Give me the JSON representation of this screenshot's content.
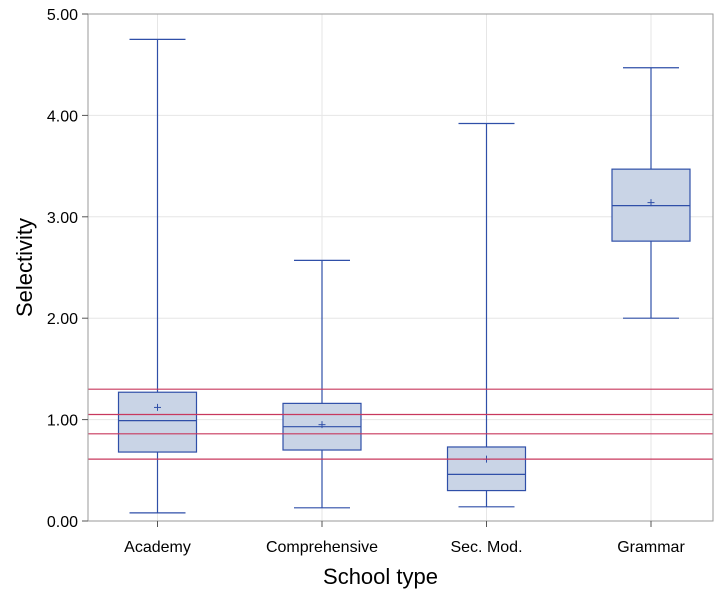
{
  "chart_data": {
    "type": "box",
    "xlabel": "School type",
    "ylabel": "Selectivity",
    "ylim": [
      0,
      5
    ],
    "yticks": [
      0,
      1,
      2,
      3,
      4,
      5
    ],
    "ytick_labels": [
      "0.00",
      "1.00",
      "2.00",
      "3.00",
      "4.00",
      "5.00"
    ],
    "categories": [
      "Academy",
      "Comprehensive",
      "Sec. Mod.",
      "Grammar"
    ],
    "boxes": [
      {
        "category": "Academy",
        "min": 0.08,
        "q1": 0.68,
        "median": 0.99,
        "q3": 1.27,
        "max": 4.75,
        "mean": 1.12
      },
      {
        "category": "Comprehensive",
        "min": 0.13,
        "q1": 0.7,
        "median": 0.93,
        "q3": 1.16,
        "max": 2.57,
        "mean": 0.95
      },
      {
        "category": "Sec. Mod.",
        "min": 0.14,
        "q1": 0.3,
        "median": 0.46,
        "q3": 0.73,
        "max": 3.92,
        "mean": 0.61
      },
      {
        "category": "Grammar",
        "min": 2.0,
        "q1": 2.76,
        "median": 3.11,
        "q3": 3.47,
        "max": 4.47,
        "mean": 3.14
      }
    ],
    "reference_lines": [
      0.61,
      0.86,
      1.05,
      1.3
    ],
    "grid": true,
    "legend": "none",
    "colors": {
      "box_fill": "#c9d4e6",
      "box_stroke": "#2f4fa8",
      "reference_line": "#c8385e",
      "grid": "#e6e6e6",
      "frame": "#9a9a9a"
    }
  }
}
